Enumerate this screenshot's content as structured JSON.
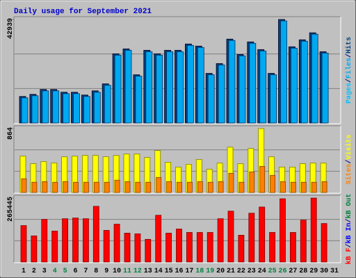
{
  "chart_data": {
    "type": "bar",
    "title": "Daily usage for September 2021",
    "categories": [
      "1",
      "2",
      "3",
      "4",
      "5",
      "6",
      "7",
      "8",
      "9",
      "10",
      "11",
      "12",
      "13",
      "14",
      "15",
      "16",
      "17",
      "18",
      "19",
      "20",
      "21",
      "22",
      "23",
      "24",
      "25",
      "26",
      "27",
      "28",
      "29",
      "30",
      "31"
    ],
    "category_colors": [
      "#000000",
      "#000000",
      "#000000",
      "#008040",
      "#008040",
      "#000000",
      "#000000",
      "#000000",
      "#000000",
      "#000000",
      "#008040",
      "#008040",
      "#000000",
      "#000000",
      "#000000",
      "#000000",
      "#000000",
      "#008040",
      "#008040",
      "#000000",
      "#000000",
      "#000000",
      "#000000",
      "#000000",
      "#008040",
      "#008040",
      "#000000",
      "#000000",
      "#000000",
      "#000000",
      "#000000"
    ],
    "legend_separator": "/",
    "panels": [
      {
        "ylim": [
          0,
          42939
        ],
        "yticks": [
          42939
        ],
        "series": [
          {
            "name": "Hits",
            "color": "#004080",
            "values": [
              11020,
              11890,
              13920,
              13920,
              12760,
              12760,
              11600,
              13340,
              16240,
              28710,
              30740,
              20010,
              30160,
              28710,
              30160,
              30160,
              32770,
              31900,
              20590,
              24650,
              34800,
              28420,
              33640,
              30450,
              20590,
              42939,
              31610,
              34510,
              37410,
              29580,
              null
            ]
          },
          {
            "name": "Files",
            "color": "#00A8F0",
            "values": [
              10440,
              11310,
              13340,
              13340,
              12180,
              12180,
              11020,
              12760,
              15660,
              28130,
              30160,
              19430,
              29580,
              28130,
              29580,
              29580,
              32190,
              31320,
              20010,
              24070,
              34220,
              27840,
              33060,
              29870,
              20010,
              42340,
              31030,
              33930,
              36830,
              29000,
              null
            ]
          }
        ],
        "legend_extra": [
          {
            "name": "Pages",
            "color": "#00C0FF"
          }
        ]
      },
      {
        "ylim": [
          0,
          864
        ],
        "yticks": [
          864
        ],
        "series": [
          {
            "name": "Visits",
            "color": "#FFFF00",
            "values": [
              492,
              390,
              418,
              399,
              483,
              492,
              502,
              502,
              483,
              502,
              520,
              520,
              474,
              567,
              409,
              344,
              381,
              446,
              316,
              399,
              613,
              390,
              595,
              864,
              483,
              344,
              344,
              390,
              399,
              399,
              null
            ]
          },
          {
            "name": "Sites",
            "color": "#FF8000",
            "values": [
              186,
              139,
              148,
              139,
              148,
              139,
              139,
              139,
              139,
              167,
              148,
              139,
              139,
              204,
              148,
              139,
              139,
              148,
              139,
              148,
              260,
              139,
              279,
              353,
              232,
              148,
              139,
              139,
              139,
              148,
              null
            ]
          }
        ],
        "legend_extra": []
      },
      {
        "ylim": [
          0,
          265445
        ],
        "yticks": [
          265445
        ],
        "series": [
          {
            "name": "kB F",
            "color": "#FF0000",
            "values": [
              151300,
              108450,
              176950,
              128430,
              179800,
              182660,
              179800,
              231170,
              131280,
              156970,
              119870,
              117010,
              94180,
              194070,
              119870,
              136990,
              122720,
              122720,
              122720,
              179800,
              211200,
              111310,
              202630,
              228320,
              122720,
              262570,
              122720,
              174090,
              265445,
              159820,
              null
            ]
          }
        ],
        "legend_extra": [
          {
            "name": "kB In",
            "color": "#0000FF"
          },
          {
            "name": "kB Out",
            "color": "#008040"
          }
        ]
      }
    ]
  }
}
